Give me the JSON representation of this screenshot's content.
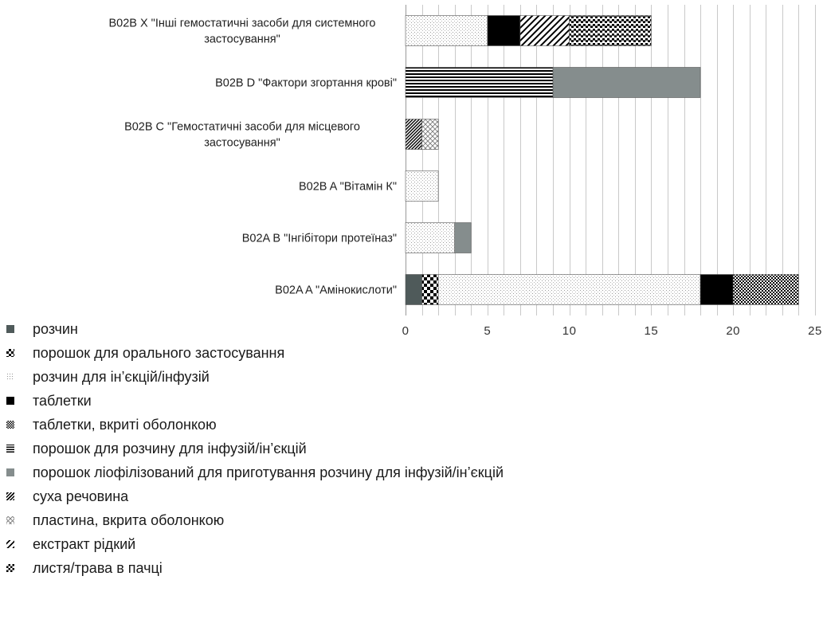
{
  "chart_data": {
    "type": "bar",
    "orientation": "horizontal",
    "stacked": true,
    "categories": [
      "B02A A \"Амінокислоти\"",
      "B02A B \"Інгібітори протеїназ\"",
      "B02B A \"Вітамін К\"",
      "B02B C \"Гемостатичні засоби для місцевого застосування\"",
      "B02B D \"Фактори згортання крові\"",
      "B02B X \"Інші гемостатичні засоби для системного застосування\""
    ],
    "category_lines": [
      [
        "B02A A \"Амінокислоти\""
      ],
      [
        "B02A B \"Інгібітори протеїназ\""
      ],
      [
        "B02B A \"Вітамін К\""
      ],
      [
        "B02B C \"Гемостатичні засоби для місцевого",
        "застосування\""
      ],
      [
        "B02B D \"Фактори згортання крові\""
      ],
      [
        "B02B X \"Інші гемостатичні засоби для системного",
        "застосування\""
      ]
    ],
    "series": [
      {
        "name": "розчин",
        "pattern": "solid-darkgray",
        "values": [
          1,
          0,
          0,
          0,
          0,
          0
        ]
      },
      {
        "name": "порошок для орального застосування",
        "pattern": "large-checker",
        "values": [
          1,
          0,
          0,
          0,
          0,
          0
        ]
      },
      {
        "name": "розчин для ін’єкцій/інфузій",
        "pattern": "light-dots",
        "values": [
          16,
          3,
          2,
          0,
          0,
          5
        ]
      },
      {
        "name": "таблетки",
        "pattern": "solid-black",
        "values": [
          2,
          0,
          0,
          0,
          0,
          2
        ]
      },
      {
        "name": "таблетки, вкриті оболонкою",
        "pattern": "small-checker",
        "values": [
          4,
          0,
          0,
          0,
          0,
          0
        ]
      },
      {
        "name": "порошок для розчину для інфузій/ін’єкцій",
        "pattern": "horizontal-lines",
        "values": [
          0,
          0,
          0,
          0,
          9,
          0
        ]
      },
      {
        "name": "порошок ліофілізований для приготування розчину для інфузій/ін’єкцій",
        "pattern": "solid-gray",
        "values": [
          0,
          1,
          0,
          0,
          9,
          0
        ]
      },
      {
        "name": "суха речовина",
        "pattern": "dense-diagonal",
        "values": [
          0,
          0,
          0,
          1,
          0,
          0
        ]
      },
      {
        "name": "пластина, вкрита оболонкою",
        "pattern": "diagonal-cross",
        "values": [
          0,
          0,
          0,
          1,
          0,
          0
        ]
      },
      {
        "name": "екстракт рідкий",
        "pattern": "wide-diagonal",
        "values": [
          0,
          0,
          0,
          0,
          0,
          3
        ]
      },
      {
        "name": "листя/трава в пачці",
        "pattern": "checker-lines",
        "values": [
          0,
          0,
          0,
          0,
          0,
          5
        ]
      }
    ],
    "xlim": [
      0,
      25
    ],
    "x_ticks": [
      "0",
      "5",
      "10",
      "15",
      "20",
      "25"
    ],
    "grid": "vertical-minor",
    "legend_position": "bottom-left",
    "title": "",
    "xlabel": "",
    "ylabel": ""
  }
}
